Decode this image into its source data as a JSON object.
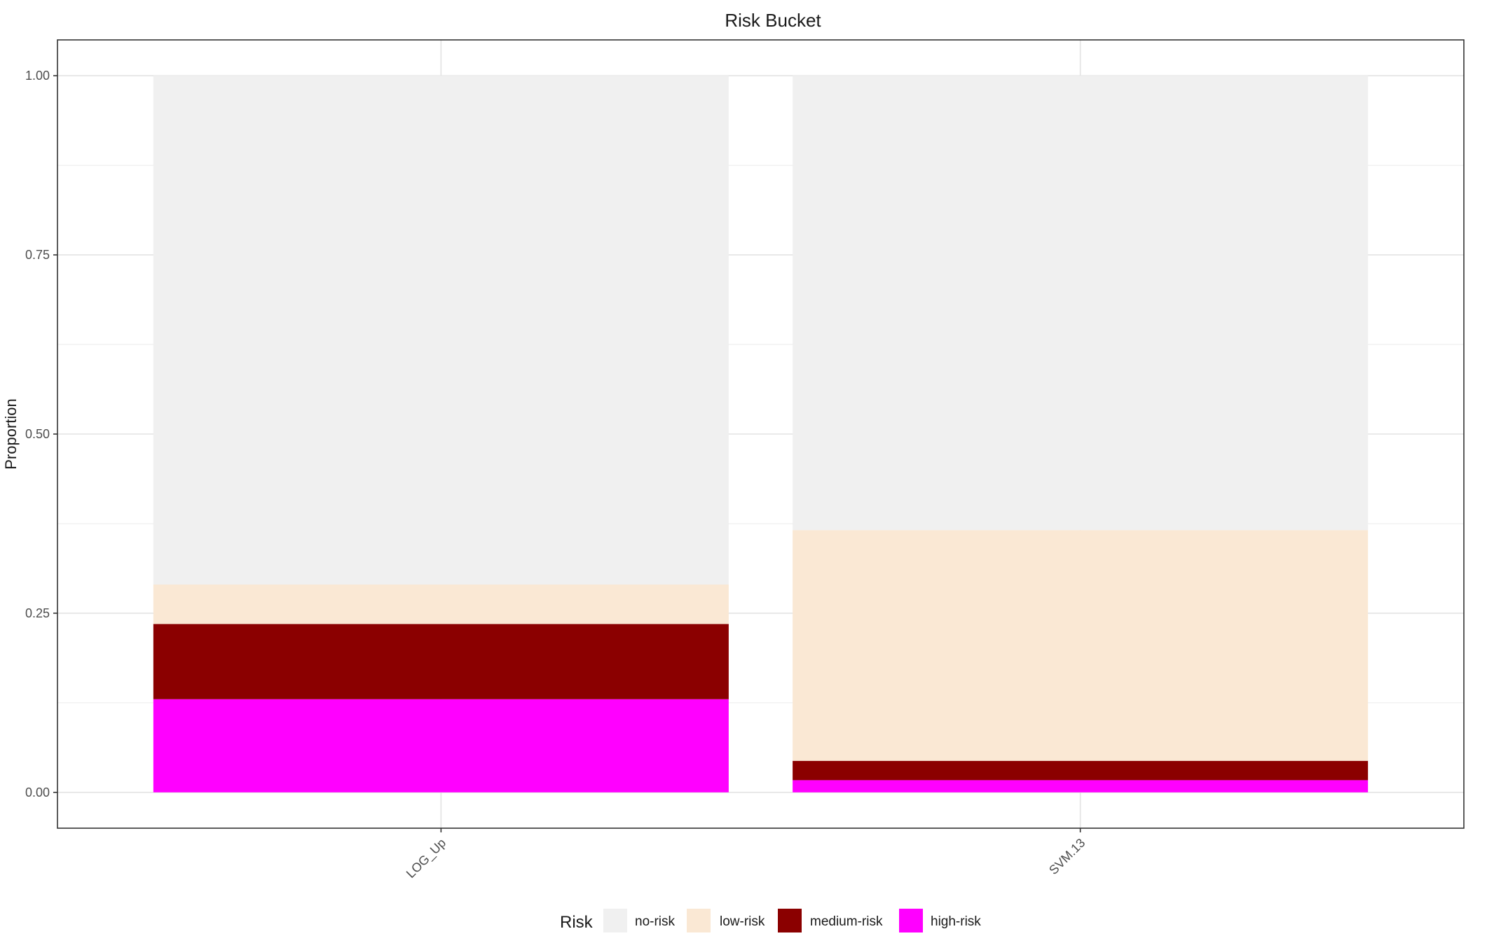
{
  "chart_data": {
    "type": "bar",
    "stacked": true,
    "title": "Risk Bucket",
    "xlabel": "",
    "ylabel": "Proportion",
    "ylim": [
      -0.05,
      1.05
    ],
    "yticks": [
      0.0,
      0.25,
      0.5,
      0.75,
      1.0
    ],
    "ytick_labels": [
      "0.00",
      "0.25",
      "0.50",
      "0.75",
      "1.00"
    ],
    "grid": true,
    "legend_position": "bottom",
    "legend_title": "Risk",
    "categories": [
      "LOG_Up",
      "SVM.13"
    ],
    "series": [
      {
        "name": "high-risk",
        "color": "#ff00ff",
        "values": [
          0.13,
          0.017
        ]
      },
      {
        "name": "medium-risk",
        "color": "#8b0000",
        "values": [
          0.105,
          0.027
        ]
      },
      {
        "name": "low-risk",
        "color": "#fae8d4",
        "values": [
          0.055,
          0.322
        ]
      },
      {
        "name": "no-risk",
        "color": "#f0f0f0",
        "values": [
          0.71,
          0.634
        ]
      }
    ],
    "legend_order": [
      "no-risk",
      "low-risk",
      "medium-risk",
      "high-risk"
    ]
  }
}
